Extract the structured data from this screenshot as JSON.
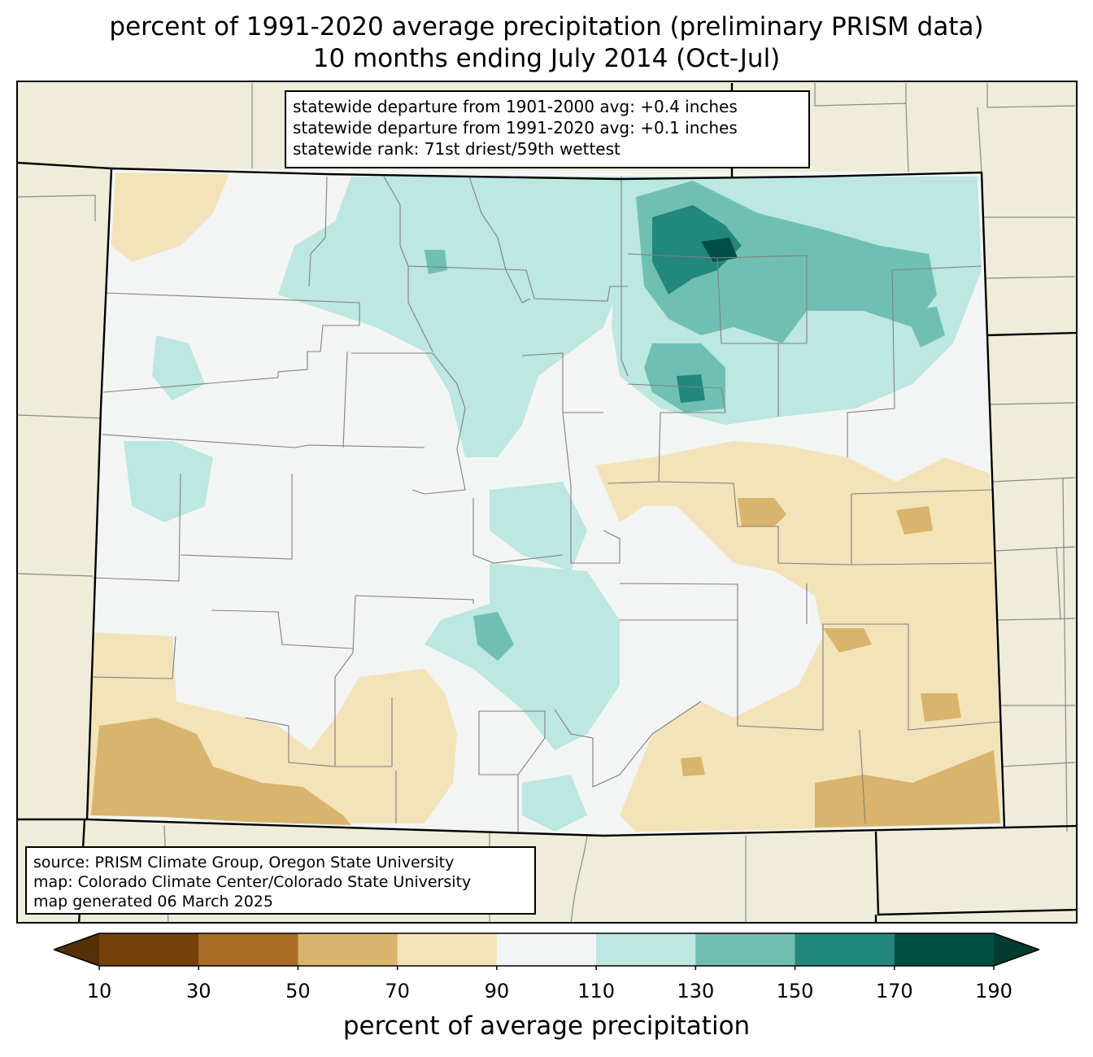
{
  "title_line1": "percent of 1991-2020 average precipitation (preliminary PRISM data)",
  "title_line2": "10 months ending July 2014 (Oct-Jul)",
  "stats": {
    "line1": "statewide departure from 1901-2000 avg: +0.4 inches",
    "line2": "statewide departure from 1991-2020 avg: +0.1 inches",
    "line3": "statewide rank: 71st driest/59th wettest"
  },
  "source": {
    "line1": "source: PRISM Climate Group, Oregon State University",
    "line2": "map: Colorado Climate Center/Colorado State University",
    "line3": "map generated 06 March 2025"
  },
  "colorbar": {
    "label": "percent of average precipitation",
    "ticks": [
      "10",
      "30",
      "50",
      "70",
      "90",
      "110",
      "130",
      "150",
      "170",
      "190"
    ],
    "under_color": "#543005",
    "over_color": "#003c30",
    "colors": [
      "#734109",
      "#a96e24",
      "#d8b46c",
      "#f3e3b9",
      "#f3f5f4",
      "#bde7e1",
      "#6fc0b3",
      "#22877d",
      "#004f44"
    ]
  },
  "map_colors": {
    "background": "#efedd9",
    "state_border": "#000000",
    "county_lines": "#808080"
  }
}
